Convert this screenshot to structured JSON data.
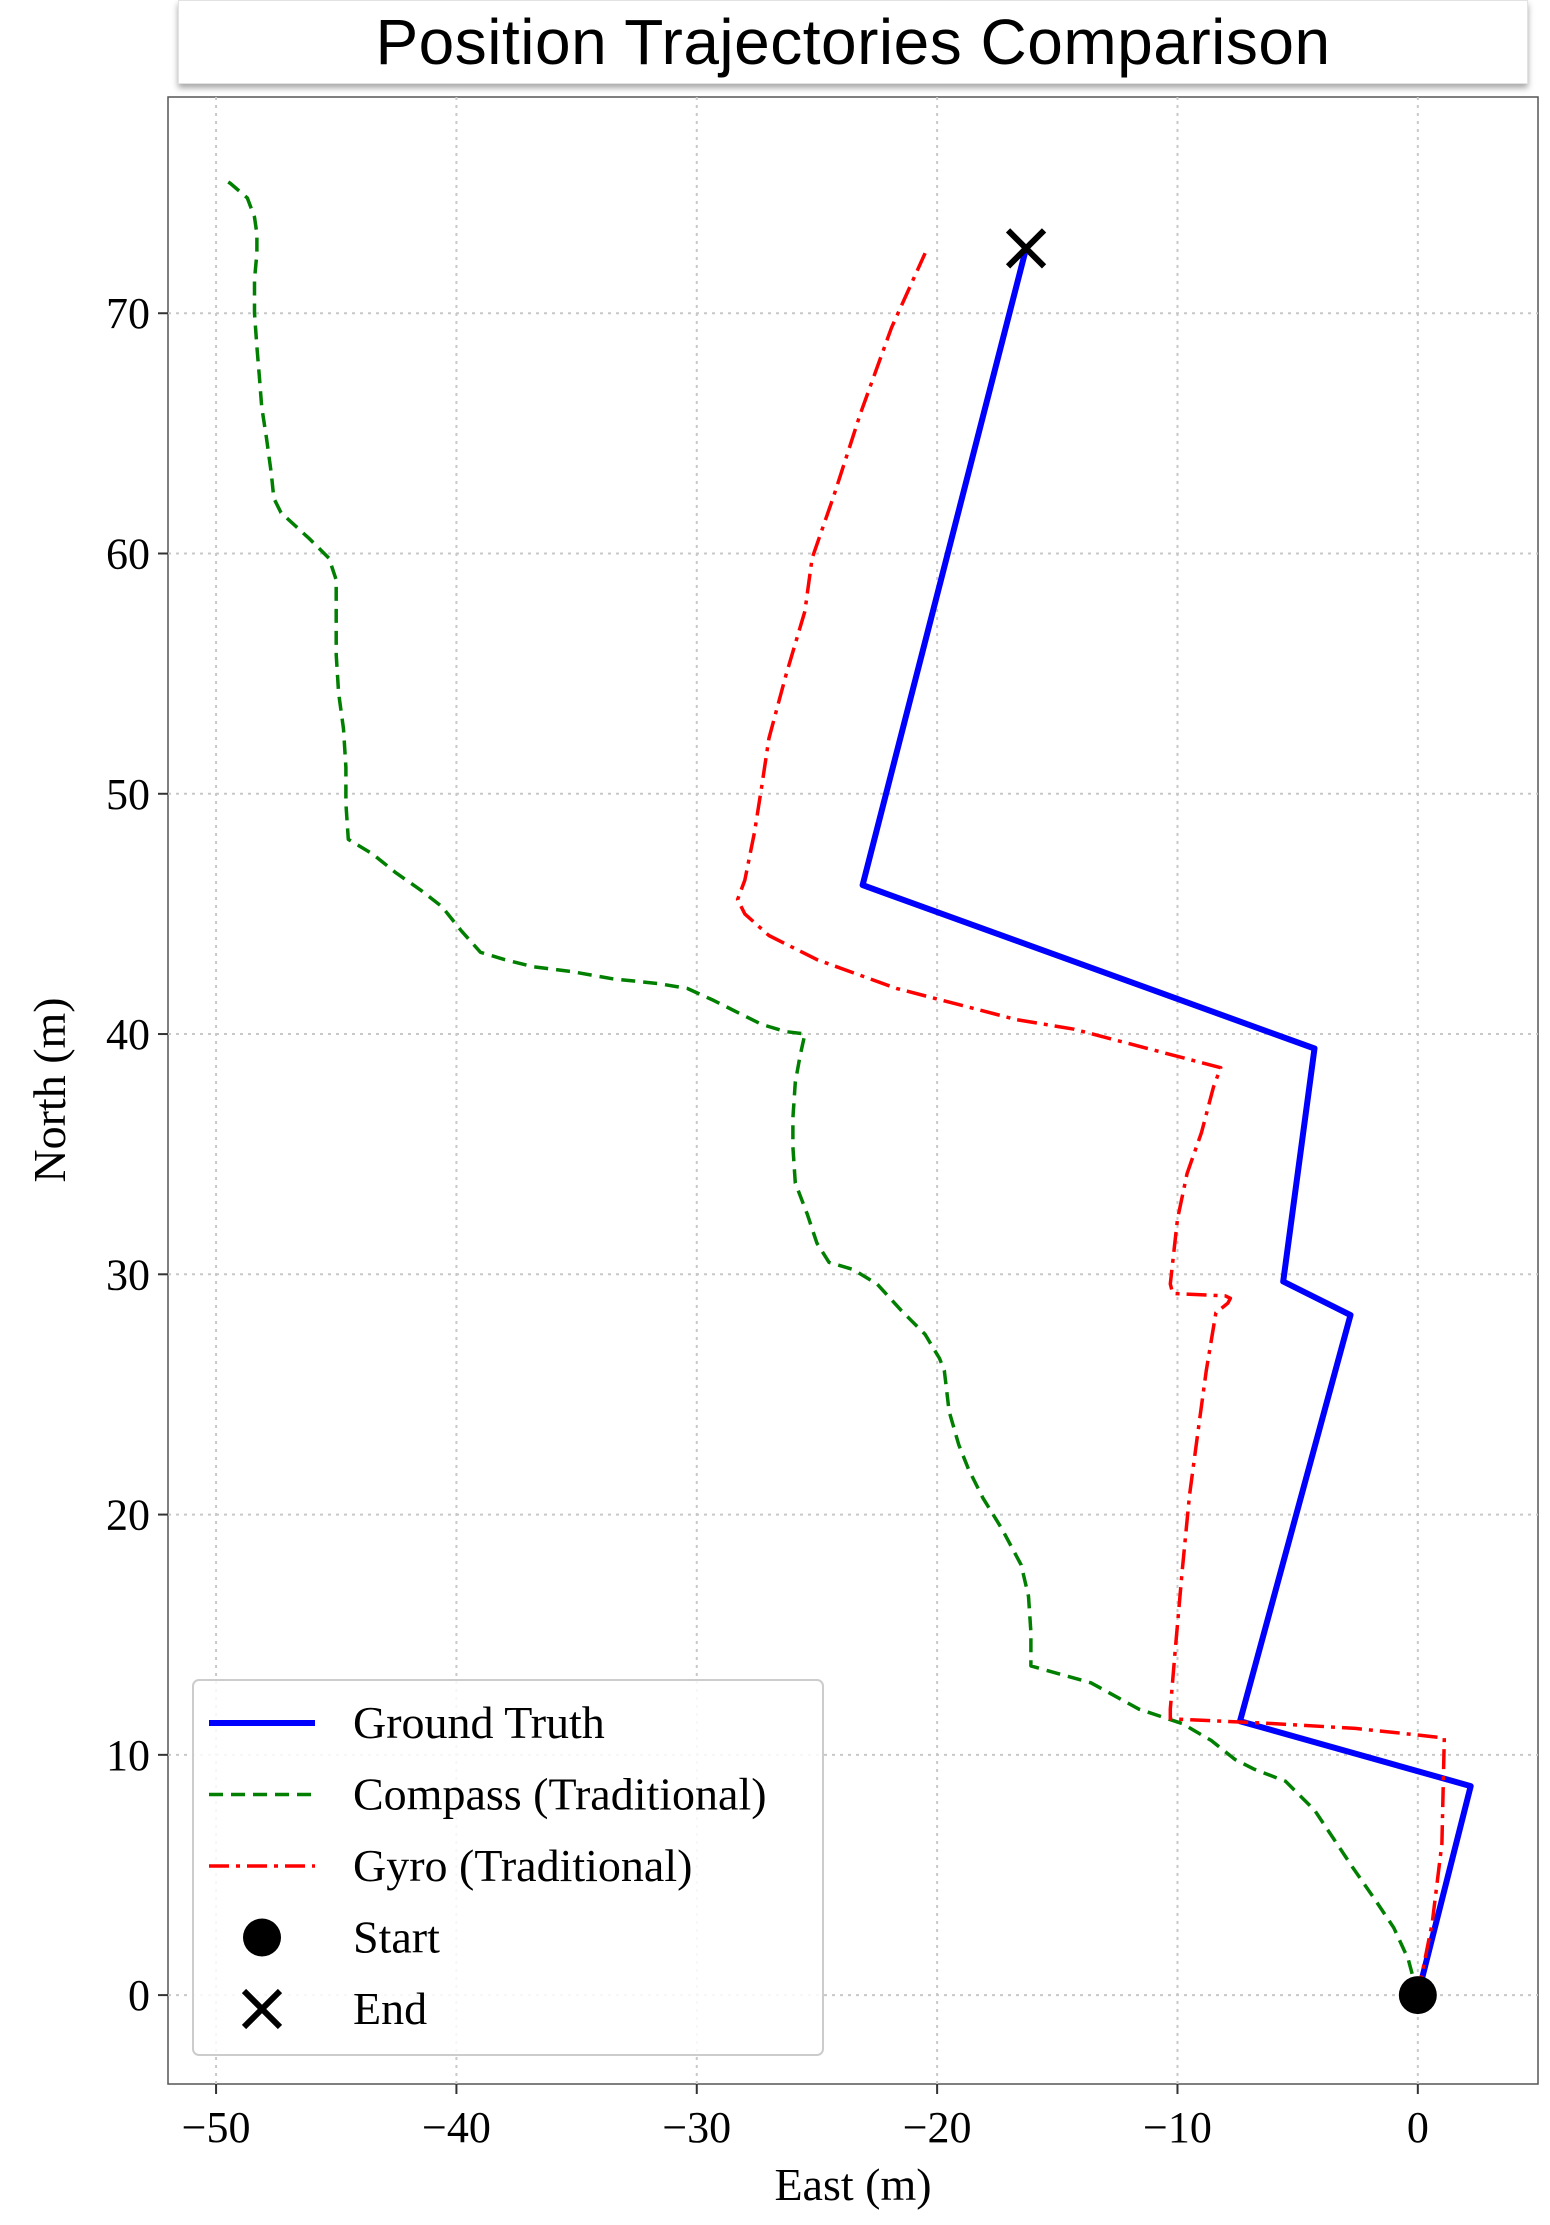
{
  "chart_data": {
    "type": "line",
    "title": "Position Trajectories Comparison",
    "xlabel": "East (m)",
    "ylabel": "North (m)",
    "xlim": [
      -52,
      5
    ],
    "ylim": [
      -3.7,
      79
    ],
    "xticks": [
      -50,
      -40,
      -30,
      -20,
      -10,
      0
    ],
    "xtick_labels": [
      "−50",
      "−40",
      "−30",
      "−20",
      "−10",
      "0"
    ],
    "yticks": [
      0,
      10,
      20,
      30,
      40,
      50,
      60,
      70
    ],
    "ytick_labels": [
      "0",
      "10",
      "20",
      "30",
      "40",
      "50",
      "60",
      "70"
    ],
    "grid": true,
    "legend_position": "bottom-left",
    "series": [
      {
        "name": "Ground Truth",
        "color": "#0000ff",
        "style": "solid",
        "x": [
          0,
          2.2,
          -7.4,
          -2.8,
          -5.6,
          -4.3,
          -23.1,
          -16.3
        ],
        "y": [
          0,
          8.7,
          11.4,
          28.3,
          29.7,
          39.4,
          46.2,
          72.7
        ]
      },
      {
        "name": "Compass (Traditional)",
        "color": "#007f00",
        "style": "dashed",
        "x": [
          0,
          -0.4,
          -1.0,
          -1.8,
          -2.7,
          -3.5,
          -4.3,
          -5.2,
          -5.5,
          -6.8,
          -7.6,
          -8.6,
          -9.8,
          -11.6,
          -13.6,
          -15.4,
          -16.1,
          -16.1,
          -16.2,
          -16.5,
          -17.3,
          -18.1,
          -18.7,
          -19.1,
          -19.5,
          -19.7,
          -19.9,
          -20.5,
          -21.5,
          -22.5,
          -23.5,
          -24.5,
          -25.0,
          -25.4,
          -25.9,
          -26.0,
          -26.0,
          -25.9,
          -25.7,
          -25.5,
          -26.3,
          -27.3,
          -28.3,
          -29.3,
          -30.4,
          -31.6,
          -33.5,
          -35.2,
          -36.8,
          -38.0,
          -39.0,
          -39.8,
          -40.6,
          -41.5,
          -42.5,
          -43.5,
          -44.5,
          -44.6,
          -44.6,
          -44.7,
          -44.9,
          -45.0,
          -45.0,
          -45.0,
          -45.3,
          -46.1,
          -47.3,
          -47.6,
          -47.7,
          -47.9,
          -48.1,
          -48.2,
          -48.3,
          -48.4,
          -48.4,
          -48.3,
          -48.3,
          -48.4,
          -48.7,
          -49.4,
          -49.7
        ],
        "y": [
          0,
          1.5,
          2.8,
          4.0,
          5.3,
          6.5,
          7.7,
          8.6,
          8.9,
          9.4,
          9.8,
          10.6,
          11.3,
          11.9,
          13.0,
          13.5,
          13.7,
          15.1,
          16.6,
          17.9,
          19.4,
          20.7,
          21.9,
          22.9,
          24.3,
          26.0,
          26.5,
          27.5,
          28.5,
          29.6,
          30.2,
          30.5,
          31.3,
          32.5,
          33.8,
          35.3,
          36.5,
          38.0,
          39.1,
          40.0,
          40.1,
          40.4,
          40.9,
          41.4,
          41.9,
          42.1,
          42.3,
          42.6,
          42.8,
          43.1,
          43.4,
          44.3,
          45.3,
          46.0,
          46.7,
          47.5,
          48.1,
          49.6,
          51.1,
          52.7,
          54.2,
          55.8,
          57.3,
          58.9,
          59.8,
          60.6,
          61.7,
          62.3,
          63.3,
          64.8,
          66.1,
          67.4,
          68.6,
          70.0,
          71.4,
          72.5,
          73.3,
          74.0,
          74.8,
          75.4,
          75.6
        ]
      },
      {
        "name": "Gyro (Traditional)",
        "color": "#ff0000",
        "style": "dashdot",
        "x": [
          0,
          0.6,
          1.0,
          1.1,
          -0.7,
          -2.6,
          -6.0,
          -10.3,
          -10.3,
          -10.1,
          -9.8,
          -9.5,
          -9.1,
          -8.8,
          -8.6,
          -8.4,
          -7.9,
          -7.8,
          -8.0,
          -10.2,
          -10.3,
          -10.0,
          -9.6,
          -9.0,
          -8.5,
          -8.2,
          -14.3,
          -16.7,
          -19.0,
          -21.7,
          -25.0,
          -27.0,
          -28.0,
          -28.3,
          -28.0,
          -27.6,
          -27.3,
          -27.0,
          -26.3,
          -25.5,
          -25.2,
          -24.3,
          -23.2,
          -21.9,
          -20.5
        ],
        "y": [
          0,
          3.0,
          6.3,
          10.7,
          10.9,
          11.1,
          11.3,
          11.5,
          11.9,
          14.3,
          17.7,
          20.8,
          23.8,
          26.0,
          27.2,
          28.4,
          28.8,
          29.0,
          29.1,
          29.2,
          29.6,
          32.3,
          34.2,
          35.9,
          37.8,
          38.6,
          40.2,
          40.6,
          41.2,
          41.9,
          43.1,
          44.1,
          45.0,
          45.6,
          46.4,
          48.4,
          50.3,
          52.3,
          54.9,
          57.6,
          59.8,
          62.4,
          65.8,
          69.4,
          72.5
        ]
      }
    ],
    "markers": [
      {
        "name": "Start",
        "symbol": "circle",
        "x": 0,
        "y": 0,
        "color": "#000000"
      },
      {
        "name": "End",
        "symbol": "x",
        "x": -16.3,
        "y": 72.7,
        "color": "#000000"
      }
    ],
    "legend": [
      "Ground Truth",
      "Compass (Traditional)",
      "Gyro (Traditional)",
      "Start",
      "End"
    ]
  }
}
